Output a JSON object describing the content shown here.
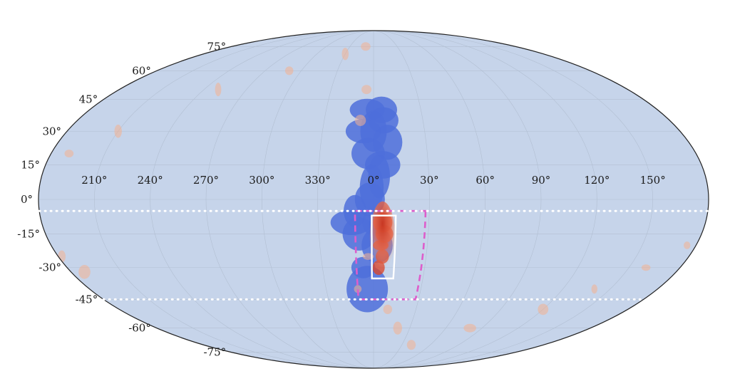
{
  "chart_data": {
    "type": "scatter",
    "projection": "mollweide",
    "title": "",
    "xlabel": "",
    "ylabel": "",
    "grid": true,
    "legend": "none",
    "longitude_ticks": [
      "150°",
      "120°",
      "90°",
      "60°",
      "30°",
      "0°",
      "330°",
      "300°",
      "270°",
      "240°",
      "210°"
    ],
    "longitude_tick_values": [
      150,
      120,
      90,
      60,
      30,
      0,
      -30,
      -60,
      -90,
      -120,
      -150
    ],
    "latitude_ticks": [
      "75°",
      "60°",
      "45°",
      "30°",
      "15°",
      "0°",
      "-15°",
      "-30°",
      "-45°",
      "-60°",
      "-75°"
    ],
    "latitude_tick_values": [
      75,
      60,
      45,
      30,
      15,
      0,
      -15,
      -30,
      -45,
      -60,
      -75
    ],
    "colors": {
      "sky": "#c6d4ea",
      "grid": "#b2bfd2",
      "density_blue": "#4e6fdb",
      "density_orange": "#f4b08f",
      "density_red": "#d9482e",
      "dashed_outer_box": "#dd5ecb",
      "inner_box": "#ffffff",
      "dotted_lines": "#ffffff"
    },
    "dotted_latitude_lines": [
      -5,
      -45
    ],
    "outer_dashed_region": {
      "lon": [
        28,
        -10
      ],
      "lat": [
        -5,
        -45
      ]
    },
    "inner_solid_region": {
      "lon": [
        12,
        -1
      ],
      "lat": [
        -7,
        -35
      ]
    },
    "series": [
      {
        "color_key": "density_blue",
        "points": [
          [
            2,
            -20
          ],
          [
            0,
            -10
          ],
          [
            -2,
            0
          ],
          [
            3,
            10
          ],
          [
            -3,
            20
          ],
          [
            0,
            30
          ],
          [
            -4,
            40
          ],
          [
            5,
            40
          ],
          [
            -6,
            30
          ],
          [
            -8,
            -15
          ],
          [
            -6,
            -30
          ],
          [
            -4,
            -40
          ],
          [
            -10,
            -5
          ],
          [
            -12,
            -10
          ],
          [
            8,
            25
          ],
          [
            5,
            15
          ],
          [
            -1,
            5
          ],
          [
            6,
            35
          ]
        ]
      },
      {
        "color_key": "density_orange",
        "points": [
          [
            -10,
            75
          ],
          [
            -30,
            70
          ],
          [
            -70,
            60
          ],
          [
            -110,
            50
          ],
          [
            -150,
            30
          ],
          [
            -170,
            20
          ],
          [
            -5,
            50
          ],
          [
            -8,
            35
          ],
          [
            175,
            -20
          ],
          [
            160,
            -30
          ],
          [
            140,
            -40
          ],
          [
            120,
            -50
          ],
          [
            80,
            -60
          ],
          [
            40,
            -70
          ],
          [
            20,
            -60
          ],
          [
            10,
            -50
          ],
          [
            -10,
            -40
          ],
          [
            -3,
            -25
          ],
          [
            -178,
            -25
          ],
          [
            -172,
            -32
          ]
        ]
      },
      {
        "color_key": "density_red",
        "points": [
          [
            5,
            -10
          ],
          [
            6,
            -15
          ],
          [
            4,
            -20
          ],
          [
            5,
            -25
          ],
          [
            3,
            -30
          ]
        ]
      }
    ]
  }
}
